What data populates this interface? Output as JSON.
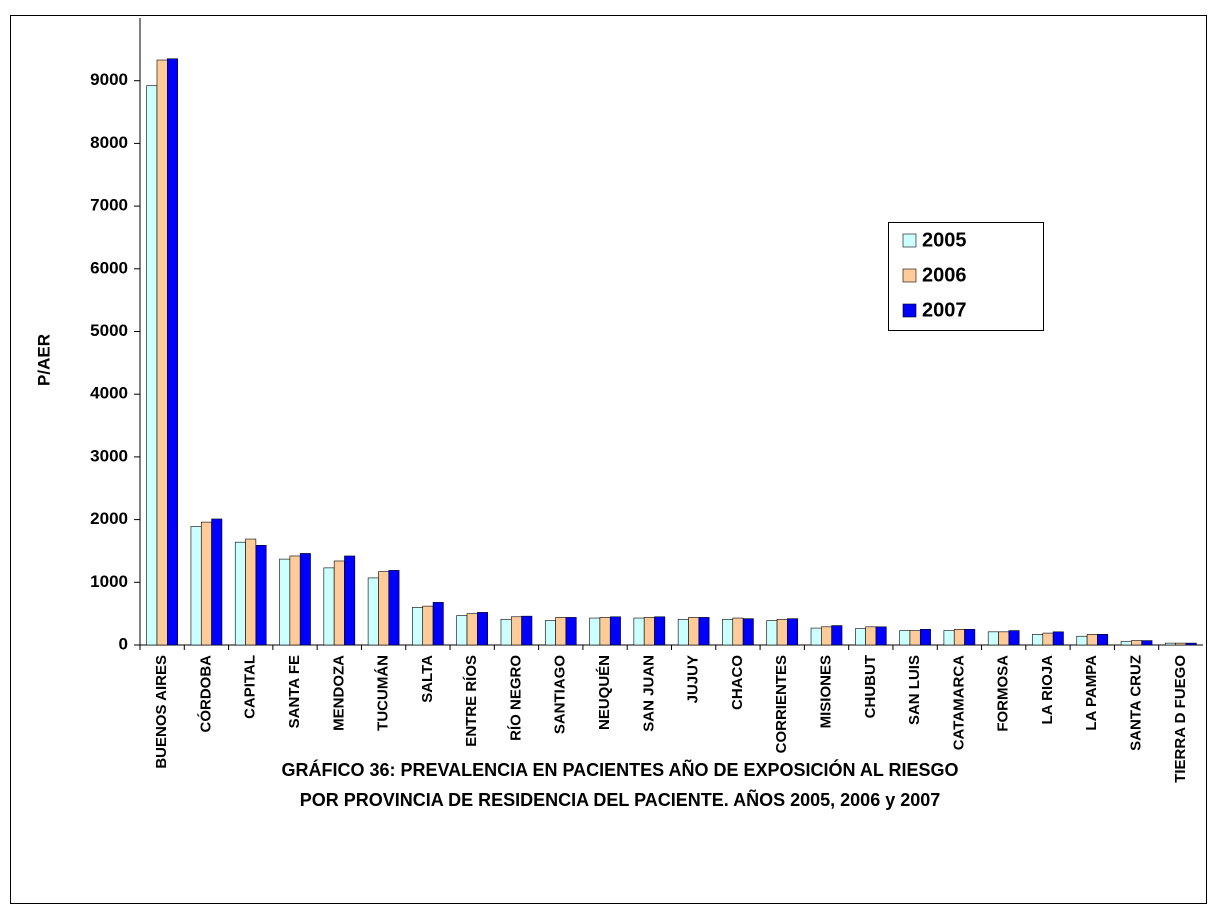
{
  "chart_data": {
    "type": "bar",
    "title_lines": [
      "GRÁFICO 36:  PREVALENCIA EN PACIENTES AÑO DE EXPOSICIÓN AL RIESGO",
      "POR PROVINCIA DE RESIDENCIA DEL PACIENTE. AÑOS 2005, 2006 y 2007"
    ],
    "y_label": "P/AER",
    "categories": [
      "BUENOS AIRES",
      "CÓRDOBA",
      "CAPITAL",
      "SANTA FE",
      "MENDOZA",
      "TUCUMÁN",
      "SALTA",
      "ENTRE RÍOS",
      "RÍO NEGRO",
      "SANTIAGO",
      "NEUQUÉN",
      "SAN JUAN",
      "JUJUY",
      "CHACO",
      "CORRIENTES",
      "MISIONES",
      "CHUBUT",
      "SAN LUIS",
      "CATAMARCA",
      "FORMOSA",
      "LA RIOJA",
      "LA PAMPA",
      "SANTA CRUZ",
      "TIERRA  D FUEGO"
    ],
    "series": [
      {
        "name": "2005",
        "color": "#ccffff",
        "values": [
          8920,
          1890,
          1640,
          1370,
          1230,
          1070,
          600,
          470,
          410,
          390,
          430,
          430,
          410,
          410,
          390,
          270,
          260,
          230,
          230,
          210,
          170,
          140,
          60,
          30
        ]
      },
      {
        "name": "2006",
        "color": "#ffcc99",
        "values": [
          9330,
          1960,
          1690,
          1420,
          1340,
          1170,
          620,
          500,
          450,
          440,
          440,
          440,
          440,
          430,
          410,
          290,
          290,
          230,
          250,
          210,
          190,
          170,
          70,
          30
        ]
      },
      {
        "name": "2007",
        "color": "#0000ff",
        "values": [
          9350,
          2010,
          1590,
          1460,
          1420,
          1190,
          680,
          520,
          460,
          440,
          450,
          450,
          440,
          420,
          420,
          310,
          290,
          250,
          250,
          230,
          210,
          170,
          70,
          30
        ]
      }
    ],
    "ylim": [
      0,
      10000
    ],
    "yticks": [
      0,
      1000,
      2000,
      3000,
      4000,
      5000,
      6000,
      7000,
      8000,
      9000
    ],
    "legend": "right",
    "grid": false
  }
}
